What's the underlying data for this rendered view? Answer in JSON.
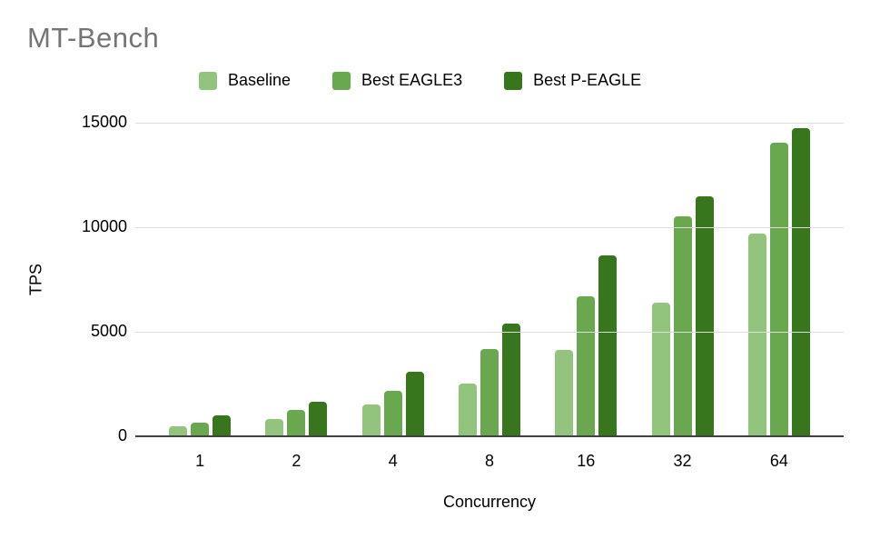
{
  "title": "MT-Bench",
  "colors": {
    "title_text": "#757575",
    "tick_text": "#000000",
    "gridline": "#dedede",
    "axis_line": "#424242",
    "background": "#ffffff"
  },
  "chart_data": {
    "type": "bar",
    "title": "MT-Bench",
    "xlabel": "Concurrency",
    "ylabel": "TPS",
    "categories": [
      "1",
      "2",
      "4",
      "8",
      "16",
      "32",
      "64"
    ],
    "series": [
      {
        "name": "Baseline",
        "color": "#93c47d",
        "pattern": "dots",
        "values": [
          450,
          800,
          1500,
          2500,
          4100,
          6350,
          9650
        ]
      },
      {
        "name": "Best EAGLE3",
        "color": "#6aa84f",
        "pattern": "solid",
        "values": [
          620,
          1230,
          2150,
          4150,
          6650,
          10500,
          14000
        ]
      },
      {
        "name": "Best P-EAGLE",
        "color": "#38761d",
        "pattern": "solid",
        "values": [
          950,
          1600,
          3050,
          5350,
          8600,
          11450,
          14700
        ]
      }
    ],
    "ylim": [
      0,
      15000
    ],
    "yticks": [
      0,
      5000,
      10000,
      15000
    ],
    "grid": true,
    "legend_position": "top"
  }
}
